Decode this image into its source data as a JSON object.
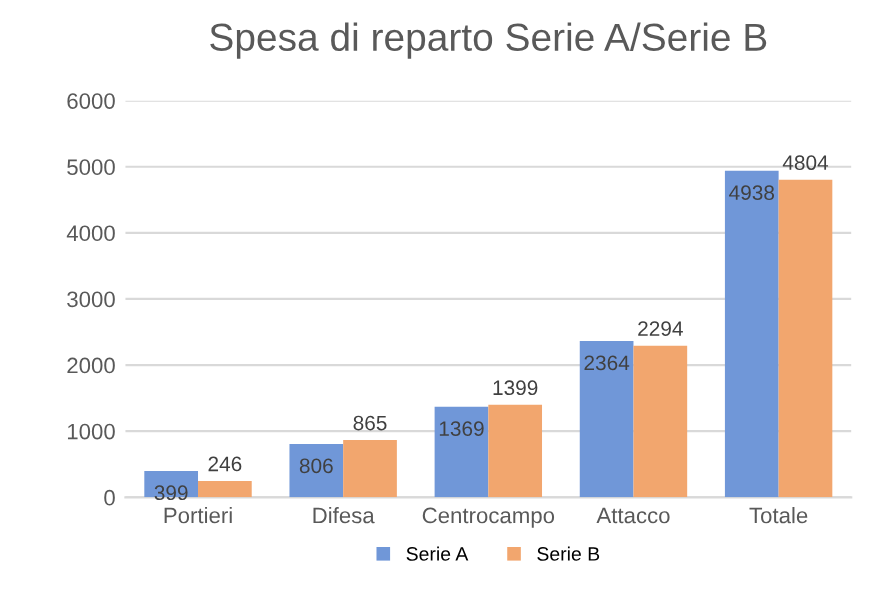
{
  "chart_data": {
    "type": "bar",
    "title": "Spesa di reparto Serie A/Serie B",
    "categories": [
      "Portieri",
      "Difesa",
      "Centrocampo",
      "Attacco",
      "Totale"
    ],
    "series": [
      {
        "name": "Serie A",
        "color": "#7097d8",
        "values": [
          399,
          806,
          1369,
          2364,
          4938
        ]
      },
      {
        "name": "Serie B",
        "color": "#f2a66e",
        "values": [
          246,
          865,
          1399,
          2294,
          4804
        ]
      }
    ],
    "ylim": [
      0,
      6000
    ],
    "yticks": [
      0,
      1000,
      2000,
      3000,
      4000,
      5000,
      6000
    ],
    "grid": "y",
    "legend": "bottom",
    "data_labels": true
  }
}
